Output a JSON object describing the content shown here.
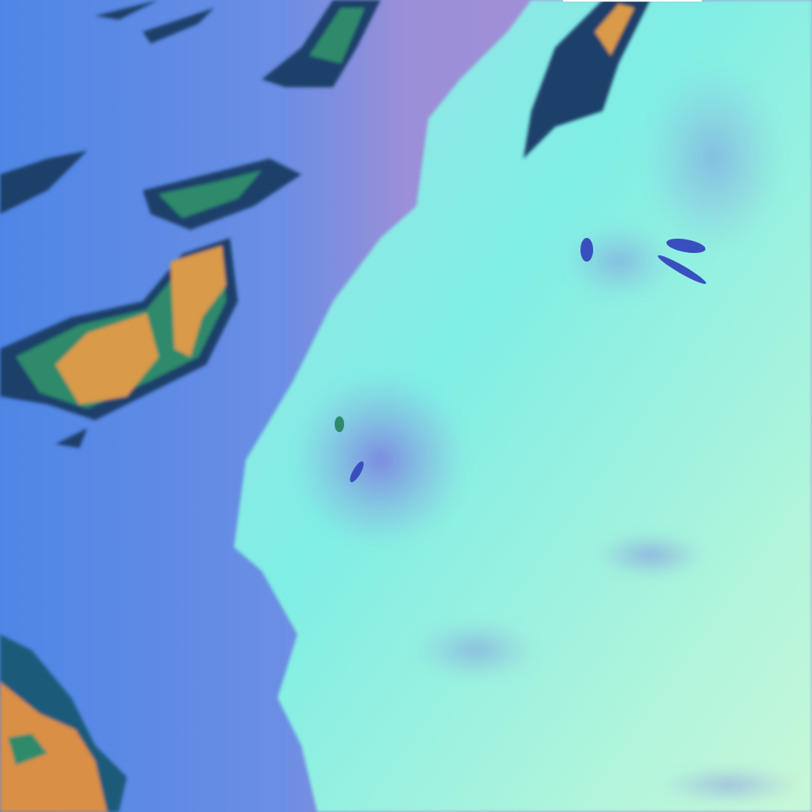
{
  "image": {
    "kind": "false-color satellite imagery",
    "colors": {
      "ocean": "#5b8ee8",
      "ocean_haze": "#9c8fd6",
      "land": "#7ff2e6",
      "land_light": "#b8f7e0",
      "land_shadow": "#8f9fe0",
      "cloud_core": "#d99a4a",
      "cloud_edge": "#2f8a6a",
      "cloud_dark": "#1d3f6a",
      "continent_orange": "#d98f45"
    }
  }
}
